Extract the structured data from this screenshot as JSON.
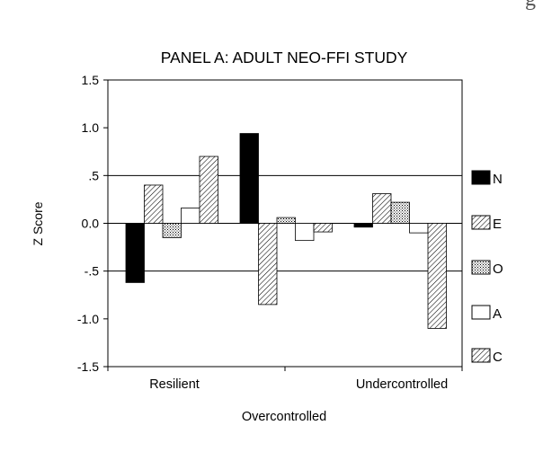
{
  "corner_fragment": "g",
  "chart_data": {
    "type": "bar",
    "title": "PANEL A: ADULT NEO-FFI STUDY",
    "xlabel": "Overcontrolled",
    "ylabel": "Z Score",
    "ylim": [
      -1.5,
      1.5
    ],
    "yticks": [
      "1.5",
      "1.0",
      ".5",
      "0.0",
      "-.5",
      "-1.0",
      "-1.5"
    ],
    "ytick_values": [
      1.5,
      1.0,
      0.5,
      0.0,
      -0.5,
      -1.0,
      -1.5
    ],
    "reference_lines": [
      0.5,
      0.0,
      -0.5
    ],
    "categories": [
      "Resilient",
      "Overcontrolled",
      "Undercontrolled"
    ],
    "category_labels_shown": [
      "Resilient",
      "Undercontrolled"
    ],
    "grid": false,
    "legend_position": "right",
    "series": [
      {
        "name": "N",
        "pattern": "solid-black",
        "values": [
          -0.62,
          0.94,
          -0.04
        ]
      },
      {
        "name": "E",
        "pattern": "diagonal-hatch",
        "values": [
          0.4,
          -0.85,
          0.31
        ]
      },
      {
        "name": "O",
        "pattern": "fine-dots",
        "values": [
          -0.15,
          0.06,
          0.22
        ]
      },
      {
        "name": "A",
        "pattern": "white",
        "values": [
          0.16,
          -0.18,
          -0.1
        ]
      },
      {
        "name": "C",
        "pattern": "diagonal-hatch",
        "values": [
          0.7,
          -0.09,
          -1.1
        ]
      }
    ]
  }
}
